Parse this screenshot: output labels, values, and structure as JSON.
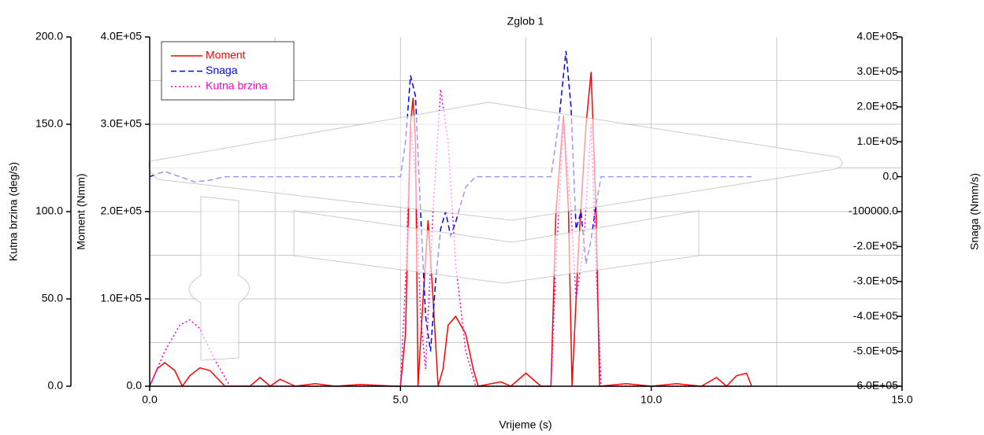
{
  "chart_data": {
    "type": "line",
    "title": "Zglob 1",
    "xlabel": "Vrijeme (s)",
    "ylabel": "Kutna brzina (deg/s)",
    "y3label": "Moment (Nmm)",
    "y2label": "Snaga (Nmm/s)",
    "xlim": [
      0,
      15
    ],
    "xticks": [
      {
        "value": 0,
        "label": "0.0"
      },
      {
        "value": 5,
        "label": "5.0"
      },
      {
        "value": 10,
        "label": "10.0"
      },
      {
        "value": 15,
        "label": "15.0"
      }
    ],
    "ylim": [
      0,
      200
    ],
    "yticks": [
      {
        "value": 0,
        "label": "0.0"
      },
      {
        "value": 50,
        "label": "50.0"
      },
      {
        "value": 100,
        "label": "100.0"
      },
      {
        "value": 150,
        "label": "150.0"
      },
      {
        "value": 200,
        "label": "200.0"
      }
    ],
    "y3lim": [
      0,
      400000
    ],
    "y3ticks": [
      {
        "value": 0,
        "label": "0.0"
      },
      {
        "value": 100000,
        "label": "1.0E+05"
      },
      {
        "value": 200000,
        "label": "2.0E+05"
      },
      {
        "value": 300000,
        "label": "3.0E+05"
      },
      {
        "value": 400000,
        "label": "4.0E+05"
      }
    ],
    "y2lim": [
      -600000,
      400000
    ],
    "y2ticks": [
      {
        "value": 400000,
        "label": "4.0E+05"
      },
      {
        "value": 300000,
        "label": "3.0E+05"
      },
      {
        "value": 200000,
        "label": "2.0E+05"
      },
      {
        "value": 100000,
        "label": "1.0E+05"
      },
      {
        "value": 0,
        "label": "0.0"
      },
      {
        "value": -100000,
        "label": "-100000.0"
      },
      {
        "value": -200000,
        "label": "-2.0E+05"
      },
      {
        "value": -300000,
        "label": "-3.0E+05"
      },
      {
        "value": -400000,
        "label": "-4.0E+05"
      },
      {
        "value": -500000,
        "label": "-5.0E+05"
      },
      {
        "value": -600000,
        "label": "-6.0E+05"
      }
    ],
    "x_gridlines": [
      2.5,
      5,
      7.5,
      10,
      12.5
    ],
    "y_gridlines": [
      25,
      50,
      75,
      100,
      125,
      150,
      175
    ],
    "grid": true,
    "legend": "upper left",
    "series": [
      {
        "name": "Moment",
        "color": "#ff0000",
        "dash": "none",
        "axis": "y3",
        "x": [
          0,
          0.15,
          0.3,
          0.5,
          0.65,
          0.8,
          1.0,
          1.2,
          1.5,
          2.0,
          2.2,
          2.4,
          2.6,
          2.9,
          3.3,
          3.7,
          4.2,
          4.9,
          5.0,
          5.1,
          5.2,
          5.25,
          5.3,
          5.35,
          5.45,
          5.55,
          5.65,
          5.75,
          5.85,
          5.95,
          6.1,
          6.3,
          6.45,
          6.55,
          7.0,
          7.2,
          7.5,
          7.8,
          8.0,
          8.1,
          8.25,
          8.35,
          8.42,
          8.55,
          8.7,
          8.8,
          8.9,
          8.97,
          9.5,
          10.0,
          10.5,
          11.0,
          11.3,
          11.5,
          11.7,
          11.9,
          12.0
        ],
        "values": [
          0,
          20000,
          27000,
          18000,
          0,
          12000,
          21000,
          18000,
          0,
          0,
          10000,
          0,
          8000,
          0,
          3000,
          0,
          2000,
          0,
          0,
          60000,
          300000,
          330000,
          280000,
          0,
          100000,
          190000,
          100000,
          0,
          20000,
          70000,
          80000,
          60000,
          20000,
          0,
          5000,
          0,
          15000,
          0,
          0,
          200000,
          310000,
          200000,
          0,
          160000,
          300000,
          360000,
          200000,
          0,
          3000,
          0,
          3000,
          0,
          10000,
          0,
          12000,
          15000,
          0
        ]
      },
      {
        "name": "Snaga",
        "color": "#0000ff",
        "dash": "7,4",
        "axis": "y2",
        "x": [
          0,
          0.3,
          0.6,
          0.9,
          1.2,
          1.5,
          5.0,
          5.1,
          5.2,
          5.3,
          5.4,
          5.5,
          5.6,
          5.7,
          5.8,
          5.9,
          6.0,
          6.1,
          6.3,
          6.5,
          8.0,
          8.15,
          8.3,
          8.4,
          8.5,
          8.6,
          8.7,
          8.8,
          8.9,
          9.0,
          12.0
        ],
        "values": [
          0,
          15000,
          0,
          -15000,
          -10000,
          0,
          0,
          100000,
          290000,
          230000,
          -100000,
          -400000,
          -500000,
          -300000,
          -150000,
          -100000,
          -170000,
          -130000,
          -30000,
          0,
          0,
          150000,
          360000,
          200000,
          -150000,
          -100000,
          -250000,
          -180000,
          -80000,
          0,
          0
        ]
      },
      {
        "name": "Kutna brzina",
        "color": "#ff00cc",
        "dash": "2,3",
        "axis": "y",
        "x": [
          0,
          0.3,
          0.6,
          0.8,
          1.0,
          1.3,
          1.6,
          5.0,
          5.1,
          5.2,
          5.3,
          5.4,
          5.5,
          5.65,
          5.8,
          5.95,
          6.1,
          6.3,
          6.5,
          8.0,
          8.1,
          8.25,
          8.4,
          8.5,
          8.65,
          8.8,
          8.9,
          9.0,
          12.0
        ],
        "values": [
          0,
          20,
          35,
          38,
          33,
          15,
          0,
          0,
          60,
          150,
          120,
          40,
          10,
          100,
          170,
          140,
          70,
          20,
          0,
          0,
          70,
          152,
          100,
          50,
          80,
          150,
          70,
          0,
          0
        ]
      }
    ]
  }
}
